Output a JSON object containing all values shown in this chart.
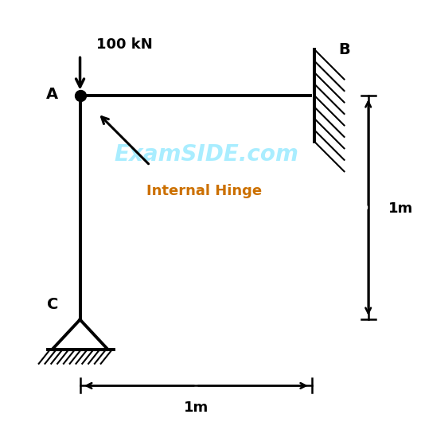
{
  "background_color": "#ffffff",
  "A": [
    0.18,
    0.78
  ],
  "B": [
    0.76,
    0.78
  ],
  "C": [
    0.18,
    0.22
  ],
  "label_A": "A",
  "label_B": "B",
  "label_C": "C",
  "load_label": "100 kN",
  "hinge_label": "Internal Hinge",
  "dim_label_h": "1m",
  "dim_label_w": "1m",
  "watermark": "ExamSIDE.com",
  "line_color": "#000000",
  "hinge_arrow_color": "#000000",
  "bold_orange": "#cc7000",
  "watermark_color": "#55ddff",
  "lw_main": 2.8,
  "lw_hatch": 1.5,
  "lw_dim": 1.8
}
